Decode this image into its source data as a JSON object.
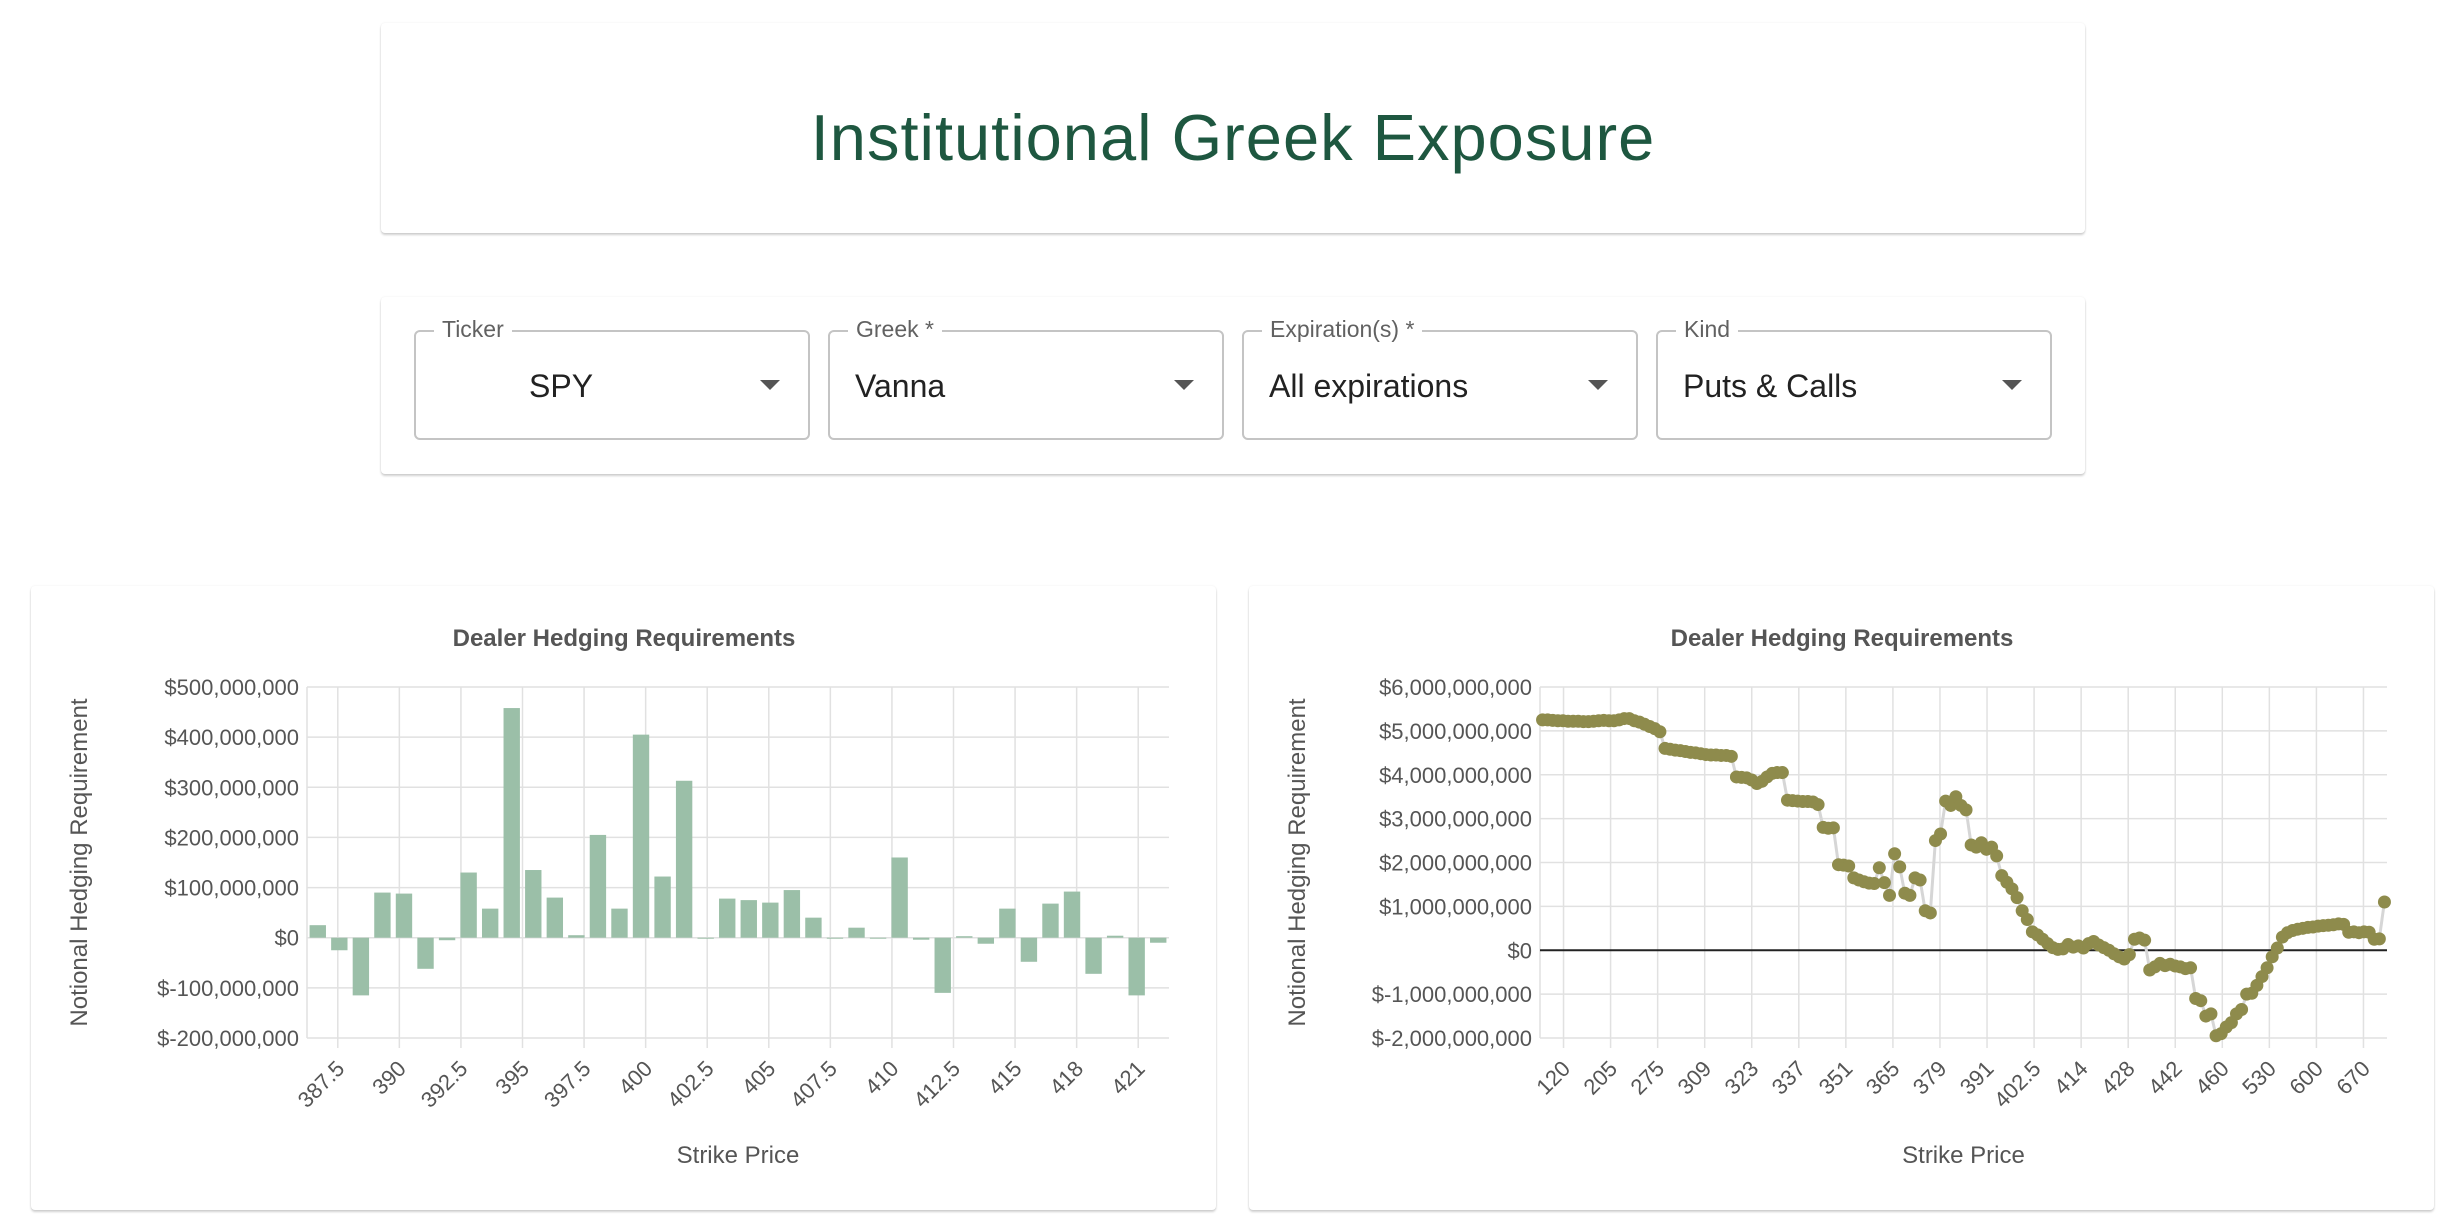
{
  "header": {
    "title": "Institutional Greek Exposure"
  },
  "controls": [
    {
      "label": "Ticker",
      "value": "SPY"
    },
    {
      "label": "Greek *",
      "value": "Vanna"
    },
    {
      "label": "Expiration(s) *",
      "value": "All expirations"
    },
    {
      "label": "Kind",
      "value": "Puts & Calls"
    }
  ],
  "chart_data": [
    {
      "type": "bar",
      "title": "Dealer Hedging Requirements",
      "xlabel": "Strike Price",
      "ylabel": "Notional Hedging Requirement",
      "ylim": [
        -200000000,
        500000000
      ],
      "yticks": [
        "$500,000,000",
        "$400,000,000",
        "$300,000,000",
        "$200,000,000",
        "$100,000,000",
        "$0",
        "$-100,000,000",
        "$-200,000,000"
      ],
      "xticks": [
        "387.5",
        "390",
        "392.5",
        "395",
        "397.5",
        "400",
        "402.5",
        "405",
        "407.5",
        "410",
        "412.5",
        "415",
        "418",
        "421"
      ],
      "grid": true,
      "color": "#9bbfa8",
      "values": [
        25000000,
        -25000000,
        -115000000,
        90000000,
        88000000,
        -62000000,
        -5000000,
        130000000,
        58000000,
        458000000,
        135000000,
        80000000,
        5000000,
        205000000,
        58000000,
        405000000,
        122000000,
        313000000,
        0,
        78000000,
        75000000,
        70000000,
        95000000,
        40000000,
        0,
        20000000,
        0,
        160000000,
        -4000000,
        -110000000,
        3000000,
        -12000000,
        58000000,
        -48000000,
        68000000,
        92000000,
        -72000000,
        4000000,
        -115000000,
        -10000000
      ]
    },
    {
      "type": "scatter",
      "title": "Dealer Hedging Requirements",
      "xlabel": "Strike Price",
      "ylabel": "Notional Hedging Requirement",
      "ylim": [
        -2000000000,
        6000000000
      ],
      "yticks": [
        "$6,000,000,000",
        "$5,000,000,000",
        "$4,000,000,000",
        "$3,000,000,000",
        "$2,000,000,000",
        "$1,000,000,000",
        "$0",
        "$-1,000,000,000",
        "$-2,000,000,000"
      ],
      "xticks": [
        "120",
        "205",
        "275",
        "309",
        "323",
        "337",
        "351",
        "365",
        "379",
        "391",
        "402.5",
        "414",
        "428",
        "442",
        "460",
        "530",
        "600",
        "670"
      ],
      "grid": true,
      "color": "#8e8b4c",
      "line_color": "#d6d6d6",
      "values": [
        5250000000,
        5250000000,
        5240000000,
        5230000000,
        5230000000,
        5220000000,
        5220000000,
        5220000000,
        5210000000,
        5210000000,
        5220000000,
        5230000000,
        5240000000,
        5230000000,
        5230000000,
        5250000000,
        5280000000,
        5280000000,
        5230000000,
        5200000000,
        5150000000,
        5100000000,
        5050000000,
        4980000000,
        4600000000,
        4580000000,
        4560000000,
        4550000000,
        4530000000,
        4510000000,
        4500000000,
        4480000000,
        4460000000,
        4450000000,
        4450000000,
        4440000000,
        4440000000,
        4420000000,
        3950000000,
        3940000000,
        3930000000,
        3880000000,
        3800000000,
        3850000000,
        3950000000,
        4030000000,
        4050000000,
        4050000000,
        3420000000,
        3410000000,
        3400000000,
        3390000000,
        3390000000,
        3380000000,
        3320000000,
        2800000000,
        2780000000,
        2790000000,
        1950000000,
        1940000000,
        1920000000,
        1650000000,
        1600000000,
        1560000000,
        1530000000,
        1520000000,
        1880000000,
        1540000000,
        1250000000,
        2200000000,
        1900000000,
        1300000000,
        1250000000,
        1650000000,
        1600000000,
        900000000,
        850000000,
        2500000000,
        2650000000,
        3400000000,
        3300000000,
        3500000000,
        3300000000,
        3200000000,
        2400000000,
        2350000000,
        2450000000,
        2300000000,
        2350000000,
        2150000000,
        1700000000,
        1550000000,
        1400000000,
        1200000000,
        900000000,
        700000000,
        420000000,
        350000000,
        250000000,
        150000000,
        60000000,
        20000000,
        30000000,
        130000000,
        70000000,
        100000000,
        50000000,
        150000000,
        200000000,
        120000000,
        60000000,
        0,
        -80000000,
        -150000000,
        -200000000,
        -100000000,
        250000000,
        280000000,
        230000000,
        -450000000,
        -380000000,
        -300000000,
        -350000000,
        -320000000,
        -360000000,
        -380000000,
        -420000000,
        -400000000,
        -1100000000,
        -1150000000,
        -1500000000,
        -1450000000,
        -1950000000,
        -1900000000,
        -1750000000,
        -1650000000,
        -1450000000,
        -1350000000,
        -1000000000,
        -980000000,
        -800000000,
        -600000000,
        -400000000,
        -150000000,
        50000000,
        300000000,
        400000000,
        450000000,
        480000000,
        500000000,
        520000000,
        530000000,
        550000000,
        560000000,
        570000000,
        580000000,
        600000000,
        590000000,
        410000000,
        420000000,
        400000000,
        420000000,
        410000000,
        250000000,
        260000000,
        1100000000
      ]
    }
  ]
}
